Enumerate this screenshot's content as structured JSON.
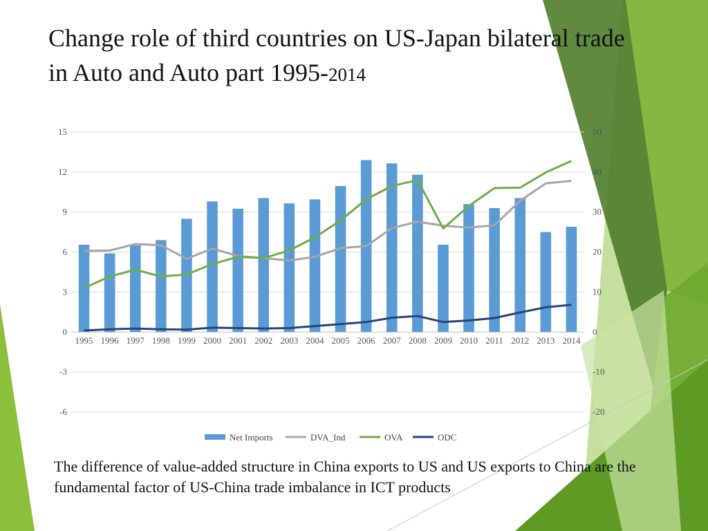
{
  "slide": {
    "title_main": "Change role of third countries on US-Japan bilateral trade in Auto and Auto part 1995-",
    "title_year": "2014",
    "caption": "The difference of value-added structure in China exports to US and US exports to China are the fundamental factor of US-China trade imbalance in ICT products"
  },
  "colors": {
    "bars": "#5b9bd5",
    "dva": "#a5a5a5",
    "ova": "#70ad47",
    "odc": "#264478",
    "green_dark": "#4e7d2a",
    "green_mid": "#7ab032",
    "green_light": "#b8d98a"
  },
  "chart_data": {
    "type": "bar",
    "categories": [
      "1995",
      "1996",
      "1997",
      "1998",
      "1999",
      "2000",
      "2001",
      "2002",
      "2003",
      "2004",
      "2005",
      "2006",
      "2007",
      "2008",
      "2009",
      "2010",
      "2011",
      "2012",
      "2013",
      "2014"
    ],
    "left_axis": {
      "ylim": [
        -6,
        15
      ],
      "ticks": [
        "15",
        "12",
        "9",
        "6",
        "3",
        "0",
        "-3",
        "-6"
      ],
      "tick_values": [
        15,
        12,
        9,
        6,
        3,
        0,
        -3,
        -6
      ]
    },
    "right_axis": {
      "ylim": [
        -20,
        50
      ],
      "ticks": [
        "50",
        "40",
        "30",
        "20",
        "10",
        "0",
        "-10",
        "-20"
      ],
      "tick_values": [
        50,
        40,
        30,
        20,
        10,
        0,
        -10,
        -20
      ]
    },
    "grid": true,
    "legend_position": "bottom",
    "series": [
      {
        "name": "Net Imports",
        "type": "bar",
        "axis": "left",
        "values": [
          6.55,
          5.9,
          6.5,
          6.9,
          8.5,
          9.8,
          9.25,
          10.05,
          9.65,
          9.95,
          10.95,
          12.9,
          12.65,
          11.8,
          6.55,
          9.6,
          9.3,
          10.05,
          7.5,
          7.9
        ]
      },
      {
        "name": "DVA_Ind",
        "type": "line",
        "axis": "right",
        "values": [
          20.3,
          20.4,
          22.0,
          21.7,
          18.3,
          20.9,
          19.0,
          18.5,
          17.9,
          18.8,
          21.0,
          21.5,
          26.0,
          27.6,
          26.6,
          26.1,
          26.7,
          32.8,
          37.2,
          37.8
        ]
      },
      {
        "name": "OVA",
        "type": "line",
        "axis": "right",
        "values": [
          11.0,
          13.9,
          15.6,
          13.9,
          14.4,
          17.0,
          18.8,
          18.5,
          20.4,
          23.7,
          27.9,
          33.2,
          36.5,
          38.0,
          25.9,
          31.5,
          36.0,
          36.1,
          39.9,
          42.8
        ]
      },
      {
        "name": "ODC",
        "type": "line",
        "axis": "right",
        "values": [
          0.4,
          0.7,
          0.9,
          0.7,
          0.6,
          1.1,
          1.0,
          0.9,
          1.0,
          1.5,
          2.0,
          2.5,
          3.6,
          4.0,
          2.5,
          2.9,
          3.5,
          4.9,
          6.2,
          6.8
        ]
      }
    ]
  }
}
